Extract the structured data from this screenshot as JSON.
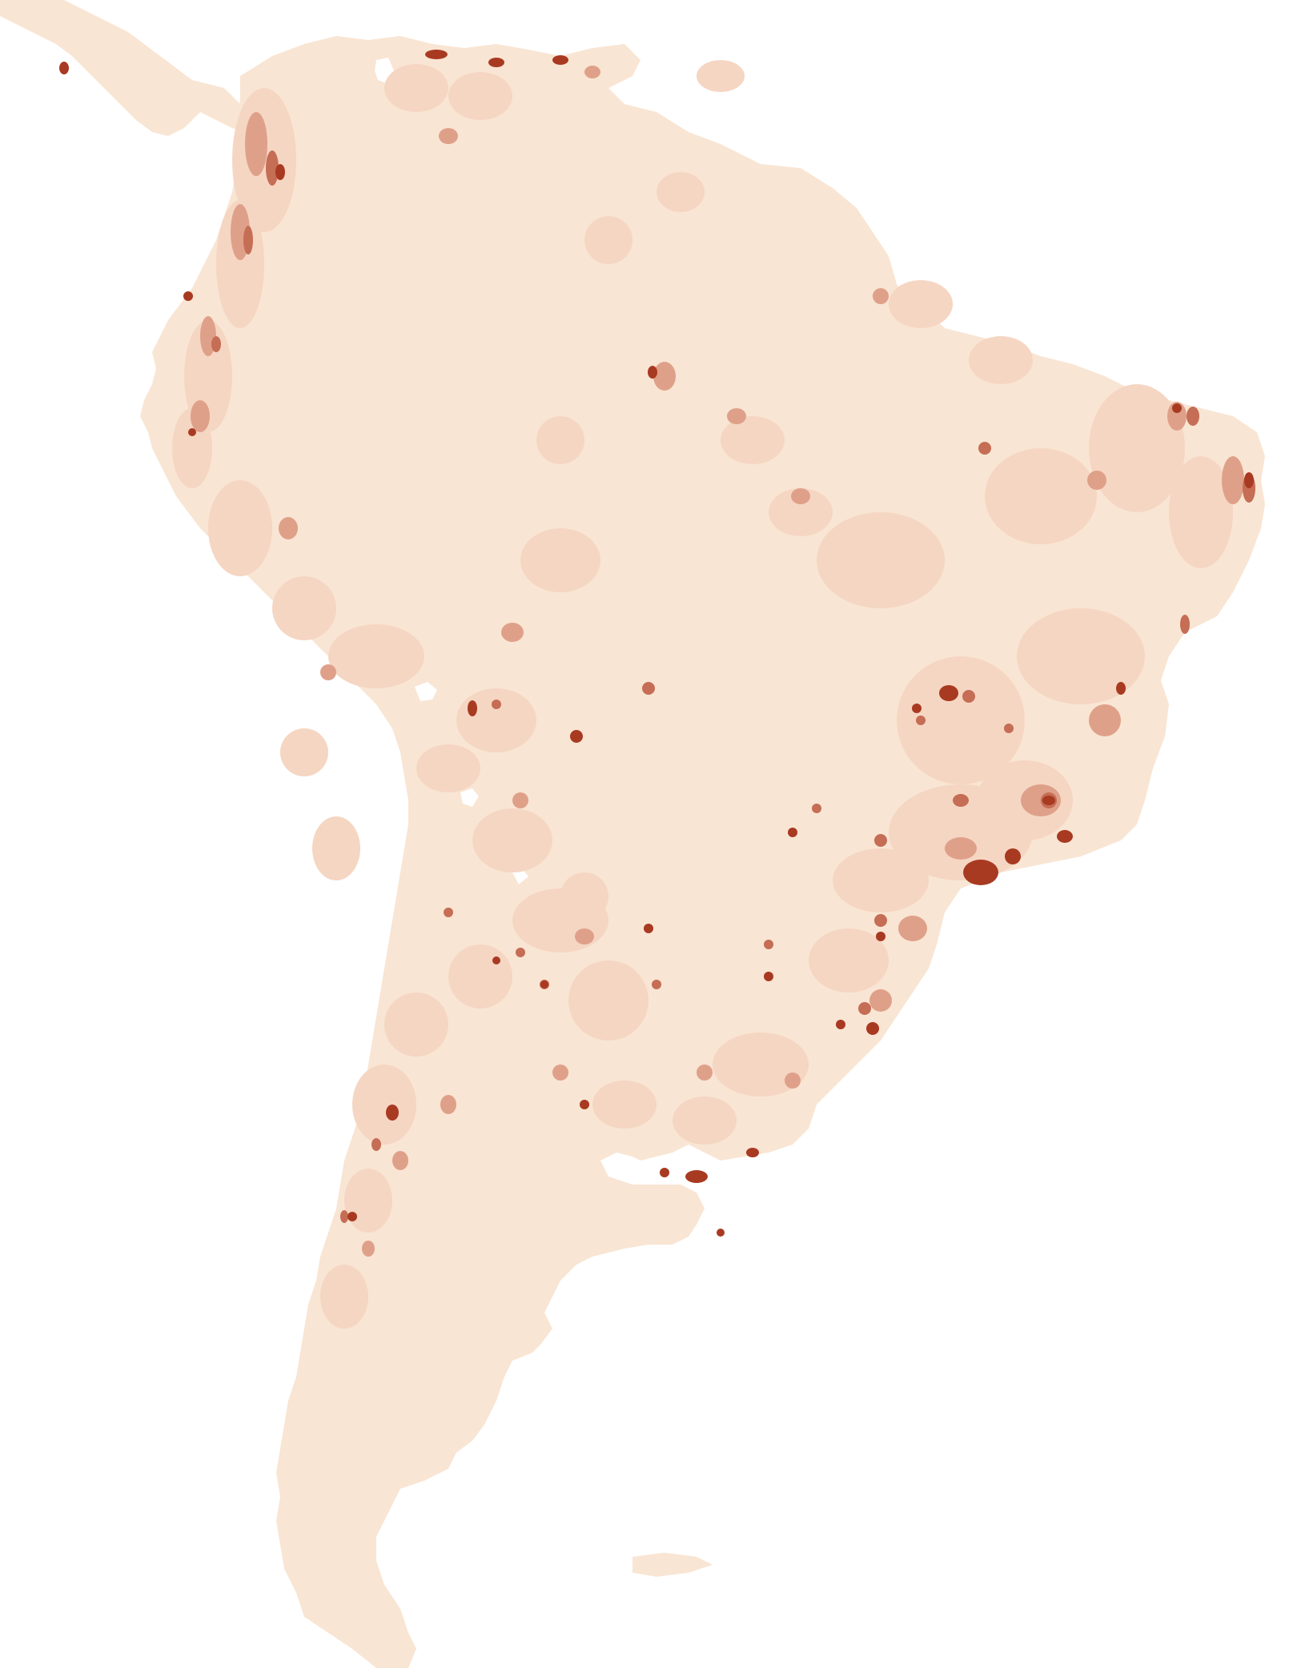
{
  "map": {
    "type": "choropleth",
    "region": "South America",
    "labels_visible": false,
    "legend_visible": false,
    "colors": {
      "background": "#ffffff",
      "land_base": "#f9e5d3",
      "density_low": "#f5d6c3",
      "density_mid": "#dfa089",
      "density_high": "#c56d55",
      "density_max": "#a83a21",
      "water": "#ffffff"
    }
  }
}
